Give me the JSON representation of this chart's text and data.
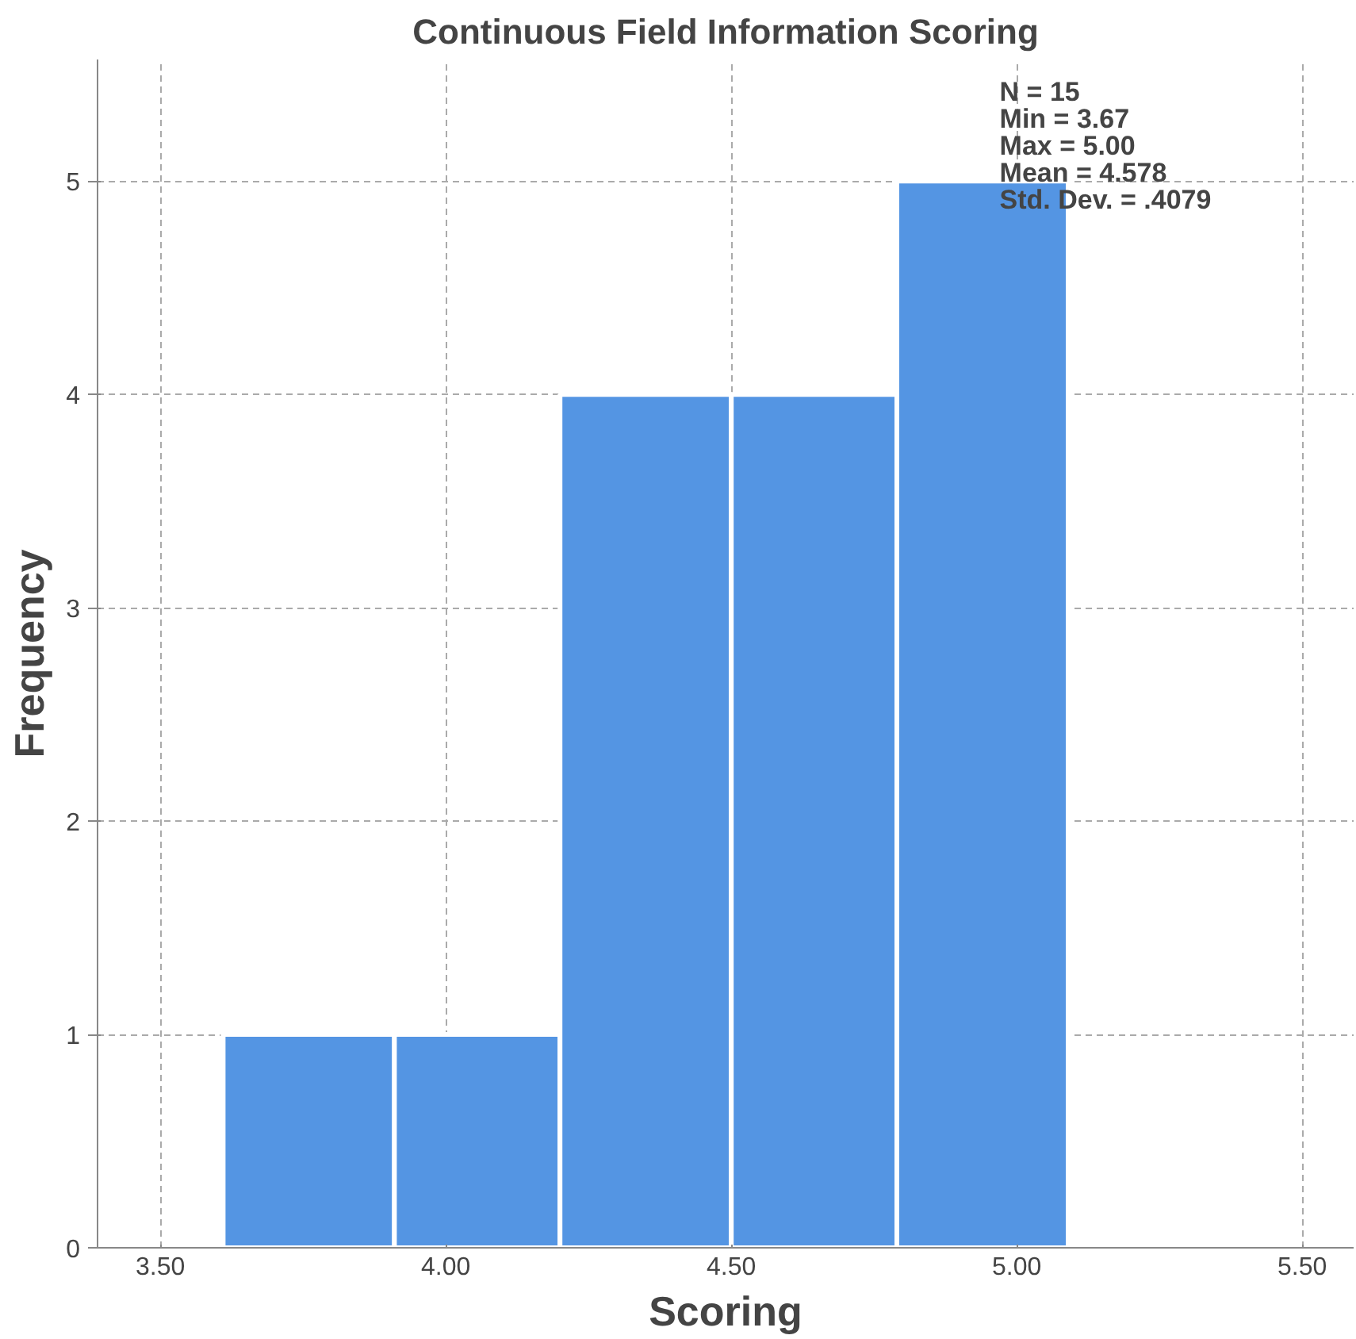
{
  "chart_data": {
    "type": "histogram",
    "title": "Continuous Field Information Scoring",
    "xlabel": "Scoring",
    "ylabel": "Frequency",
    "bins": [
      3.61,
      3.91,
      4.2,
      4.5,
      4.79,
      5.09
    ],
    "values": [
      1,
      1,
      4,
      4,
      5
    ],
    "color": "#5495e3",
    "xlim": [
      3.39,
      5.59
    ],
    "xticks": [
      {
        "value": 3.5,
        "label": "3.50"
      },
      {
        "value": 4,
        "label": "4.00"
      },
      {
        "value": 4.5,
        "label": "4.50"
      },
      {
        "value": 5,
        "label": "5.00"
      },
      {
        "value": 5.5,
        "label": "5.50"
      }
    ],
    "ylim": [
      0,
      5.57
    ],
    "yticks": [
      0,
      1,
      2,
      3,
      4,
      5
    ],
    "grid": true,
    "annotations": [
      "N = 15",
      "Min = 3.67",
      "Max = 5.00",
      "Mean = 4.578",
      "Std. Dev. = .4079"
    ]
  }
}
